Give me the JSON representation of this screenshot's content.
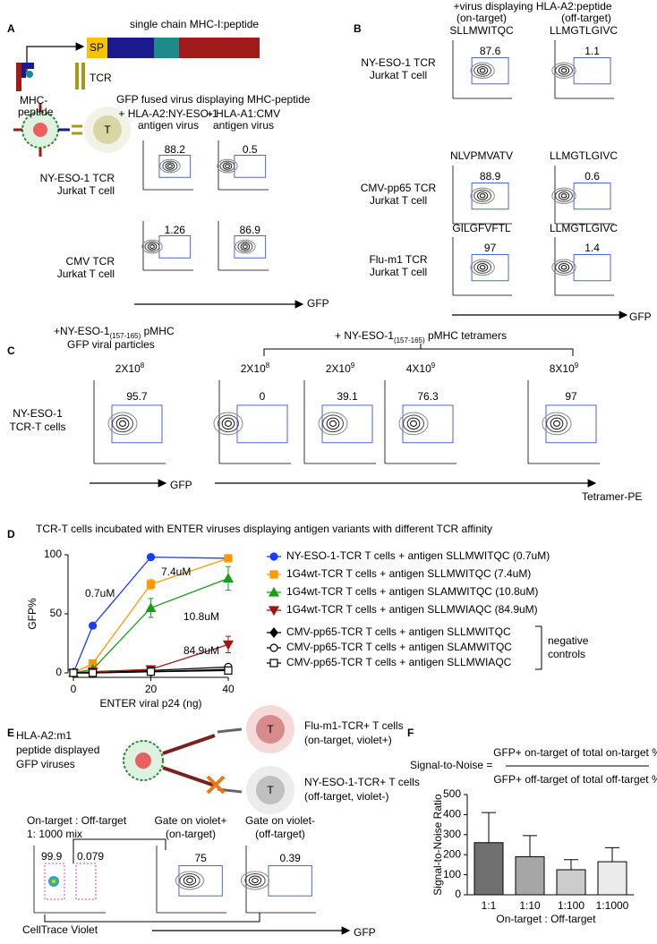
{
  "panel_labels": [
    "A",
    "B",
    "C",
    "D",
    "E",
    "F"
  ],
  "A": {
    "construct_title": "single chain MHC-I:peptide",
    "sp": "SP",
    "mhc_peptide": [
      "MHC-",
      "peptide"
    ],
    "tcr": "TCR",
    "t": "T",
    "subtitle": "GFP fused virus displaying MHC-peptide",
    "columns": [
      [
        "+ HLA-A2:NY-ESO-1",
        "antigen virus"
      ],
      [
        "+ HLA-A1:CMV",
        "antigen virus"
      ]
    ],
    "rows": [
      [
        "NY-ESO-1 TCR",
        "Jurkat T cell"
      ],
      [
        "CMV TCR",
        "Jurkat T cell"
      ]
    ],
    "gates": [
      [
        88.2,
        0.5
      ],
      [
        1.26,
        86.9
      ]
    ],
    "axis": "GFP"
  },
  "B": {
    "header": "+virus displaying HLA-A2:peptide",
    "on": "(on-target)",
    "off": "(off-target)",
    "peptides": [
      [
        "SLLMWITQC",
        "LLMGTLGIVC"
      ],
      [
        "NLVPMVATV",
        "LLMGTLGIVC"
      ],
      [
        "GILGFVFTL",
        "LLMGTLGIVC"
      ]
    ],
    "rows": [
      [
        "NY-ESO-1 TCR",
        "Jurkat T cell"
      ],
      [
        "CMV-pp65 TCR",
        "Jurkat T cell"
      ],
      [
        "Flu-m1 TCR",
        "Jurkat T cell"
      ]
    ],
    "gates": [
      [
        87.6,
        1.1
      ],
      [
        88.9,
        0.6
      ],
      [
        97,
        1.4
      ]
    ],
    "axis": "GFP"
  },
  "C": {
    "left_header": {
      "pre": "+NY-ESO-1",
      "sub": "(157-165)",
      "post": " pMHC",
      "line2": "GFP viral particles"
    },
    "right_header": {
      "pre": "+ NY-ESO-1",
      "sub": "(157-165)",
      "post": " pMHC tetramers"
    },
    "doses": [
      {
        "base": "2X10",
        "exp": "8"
      },
      {
        "base": "2X10",
        "exp": "8"
      },
      {
        "base": "2X10",
        "exp": "9"
      },
      {
        "base": "4X10",
        "exp": "9"
      },
      {
        "base": "8X10",
        "exp": "9"
      }
    ],
    "row": [
      "NY-ESO-1",
      "TCR-T cells"
    ],
    "gates": [
      95.7,
      0,
      39.1,
      76.3,
      97
    ],
    "axis_left": "GFP",
    "axis_right": "Tetramer-PE"
  },
  "E": {
    "title": [
      "HLA-A2:m1",
      "peptide displayed",
      "GFP viruses"
    ],
    "t": "T",
    "cells": [
      {
        "label": "Flu-m1-TCR+ T cells",
        "sub": "(on-target, violet+)"
      },
      {
        "label": "NY-ESO-1-TCR+ T cells",
        "sub": "(off-target, violet-)"
      }
    ],
    "mix": [
      "On-target : Off-target",
      "1: 1000 mix"
    ],
    "mix_gates": [
      99.9,
      0.079
    ],
    "gates": [
      {
        "title": "Gate on violet+",
        "sub": "(on-target)",
        "value": 75
      },
      {
        "title": "Gate on violet-",
        "sub": "(off-target)",
        "value": 0.39
      }
    ],
    "axis_left": "CellTrace Violet",
    "axis_right": "GFP"
  },
  "F": {
    "formula": {
      "lhs": "Signal-to-Noise =",
      "num": "GFP+ on-target of total on-target %",
      "den": "GFP+ off-target of total off-target %"
    }
  },
  "chart_data": [
    {
      "type": "line",
      "title": "TCR-T cells incubated with ENTER viruses displaying antigen variants with different TCR affinity",
      "xlabel": "ENTER viral p24 (ng)",
      "ylabel": "GFP%",
      "x": [
        0,
        5,
        20,
        40
      ],
      "xlim": [
        0,
        40
      ],
      "ylim": [
        0,
        100
      ],
      "xticks": [
        0,
        20,
        40
      ],
      "yticks": [
        0,
        50,
        100
      ],
      "series": [
        {
          "name": "NY-ESO-1-TCR T cells + antigen SLLMWITQC (0.7uM)",
          "color": "#1a3cff",
          "marker": "circle",
          "values": [
            0,
            40,
            98,
            97
          ],
          "errors": [
            0,
            2,
            1,
            2
          ]
        },
        {
          "name": "1G4wt-TCR T cells + antigen SLLMWITQC (7.4uM)",
          "color": "#ff9900",
          "marker": "square",
          "values": [
            0,
            8,
            75,
            97
          ],
          "errors": [
            0,
            2,
            4,
            3
          ]
        },
        {
          "name": "1G4wt-TCR T cells + antigen SLAMWITQC (10.8uM)",
          "color": "#1a9e1a",
          "marker": "triangle",
          "values": [
            0,
            3,
            55,
            80
          ],
          "errors": [
            0,
            1,
            8,
            10
          ]
        },
        {
          "name": "1G4wt-TCR T cells + antigen SLLMWIAQC (84.9uM)",
          "color": "#a01515",
          "marker": "triangle-down",
          "values": [
            0,
            1,
            3,
            24
          ],
          "errors": [
            0,
            1,
            2,
            7
          ]
        },
        {
          "name": "CMV-pp65-TCR T cells + antigen SLLMWITQC",
          "color": "#000000",
          "marker": "diamond",
          "values": [
            0,
            0,
            1,
            3
          ],
          "errors": [
            0,
            0,
            1,
            1
          ]
        },
        {
          "name": "CMV-pp65-TCR T cells + antigen SLAMWITQC",
          "color": "#000000",
          "marker": "open-circle",
          "values": [
            0,
            0,
            2,
            5
          ],
          "errors": [
            0,
            0,
            1,
            2
          ]
        },
        {
          "name": "CMV-pp65-TCR T cells + antigen SLLMWIAQC",
          "color": "#000000",
          "marker": "open-square",
          "values": [
            0,
            0,
            1,
            2
          ],
          "errors": [
            0,
            0,
            1,
            1
          ]
        }
      ],
      "annotations": [
        "0.7uM",
        "7.4uM",
        "10.8uM",
        "84.9uM"
      ],
      "legend_note": [
        "negative",
        "controls"
      ]
    },
    {
      "type": "bar",
      "ylabel": "Signal-to-Noise Ratio",
      "xlabel": "On-target : Off-target",
      "categories": [
        "1:1",
        "1:10",
        "1:100",
        "1:1000"
      ],
      "values": [
        260,
        190,
        125,
        165
      ],
      "errors": [
        150,
        105,
        50,
        70
      ],
      "colors": [
        "#707070",
        "#a6a6a6",
        "#cccccc",
        "#ebebeb"
      ],
      "ylim": [
        0,
        500
      ],
      "yticks": [
        0,
        100,
        200,
        300,
        400,
        500
      ]
    }
  ]
}
